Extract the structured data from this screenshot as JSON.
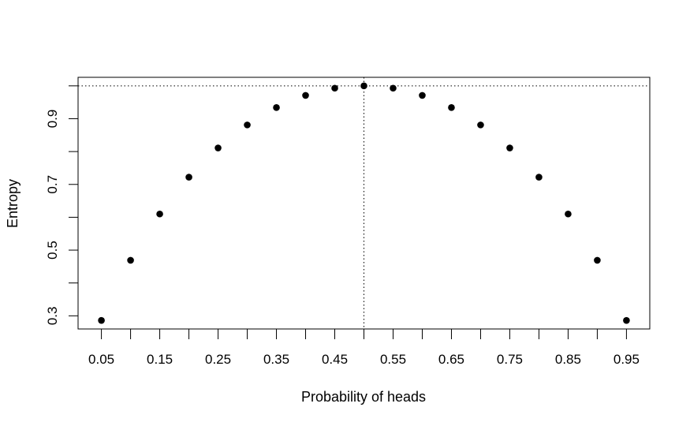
{
  "chart_data": {
    "type": "scatter",
    "title": "",
    "xlabel": "Probability of heads",
    "ylabel": "Entropy",
    "x": [
      0.05,
      0.1,
      0.15,
      0.2,
      0.25,
      0.3,
      0.35,
      0.4,
      0.45,
      0.5,
      0.55,
      0.6,
      0.65,
      0.7,
      0.75,
      0.8,
      0.85,
      0.9,
      0.95
    ],
    "y": [
      0.286,
      0.469,
      0.61,
      0.722,
      0.811,
      0.881,
      0.934,
      0.971,
      0.993,
      1.0,
      0.993,
      0.971,
      0.934,
      0.881,
      0.811,
      0.722,
      0.61,
      0.469,
      0.286
    ],
    "xlim": [
      0.01,
      0.99
    ],
    "ylim": [
      0.26,
      1.026
    ],
    "x_ticks": [
      0.05,
      0.1,
      0.15,
      0.2,
      0.25,
      0.3,
      0.35,
      0.4,
      0.45,
      0.5,
      0.55,
      0.6,
      0.65,
      0.7,
      0.75,
      0.8,
      0.85,
      0.9,
      0.95
    ],
    "x_tick_labels": [
      "0.05",
      "",
      "0.15",
      "",
      "0.25",
      "",
      "0.35",
      "",
      "0.45",
      "",
      "0.55",
      "",
      "0.65",
      "",
      "0.75",
      "",
      "0.85",
      "",
      "0.95"
    ],
    "y_ticks": [
      0.3,
      0.4,
      0.5,
      0.6,
      0.7,
      0.8,
      0.9,
      1.0
    ],
    "y_tick_labels": [
      "0.3",
      "",
      "0.5",
      "",
      "0.7",
      "",
      "0.9",
      ""
    ],
    "reference_lines": [
      {
        "orientation": "horizontal",
        "value": 1.0,
        "style": "dotted"
      },
      {
        "orientation": "vertical",
        "value": 0.5,
        "style": "dotted"
      }
    ],
    "grid": false,
    "marker_color": "#000000"
  }
}
